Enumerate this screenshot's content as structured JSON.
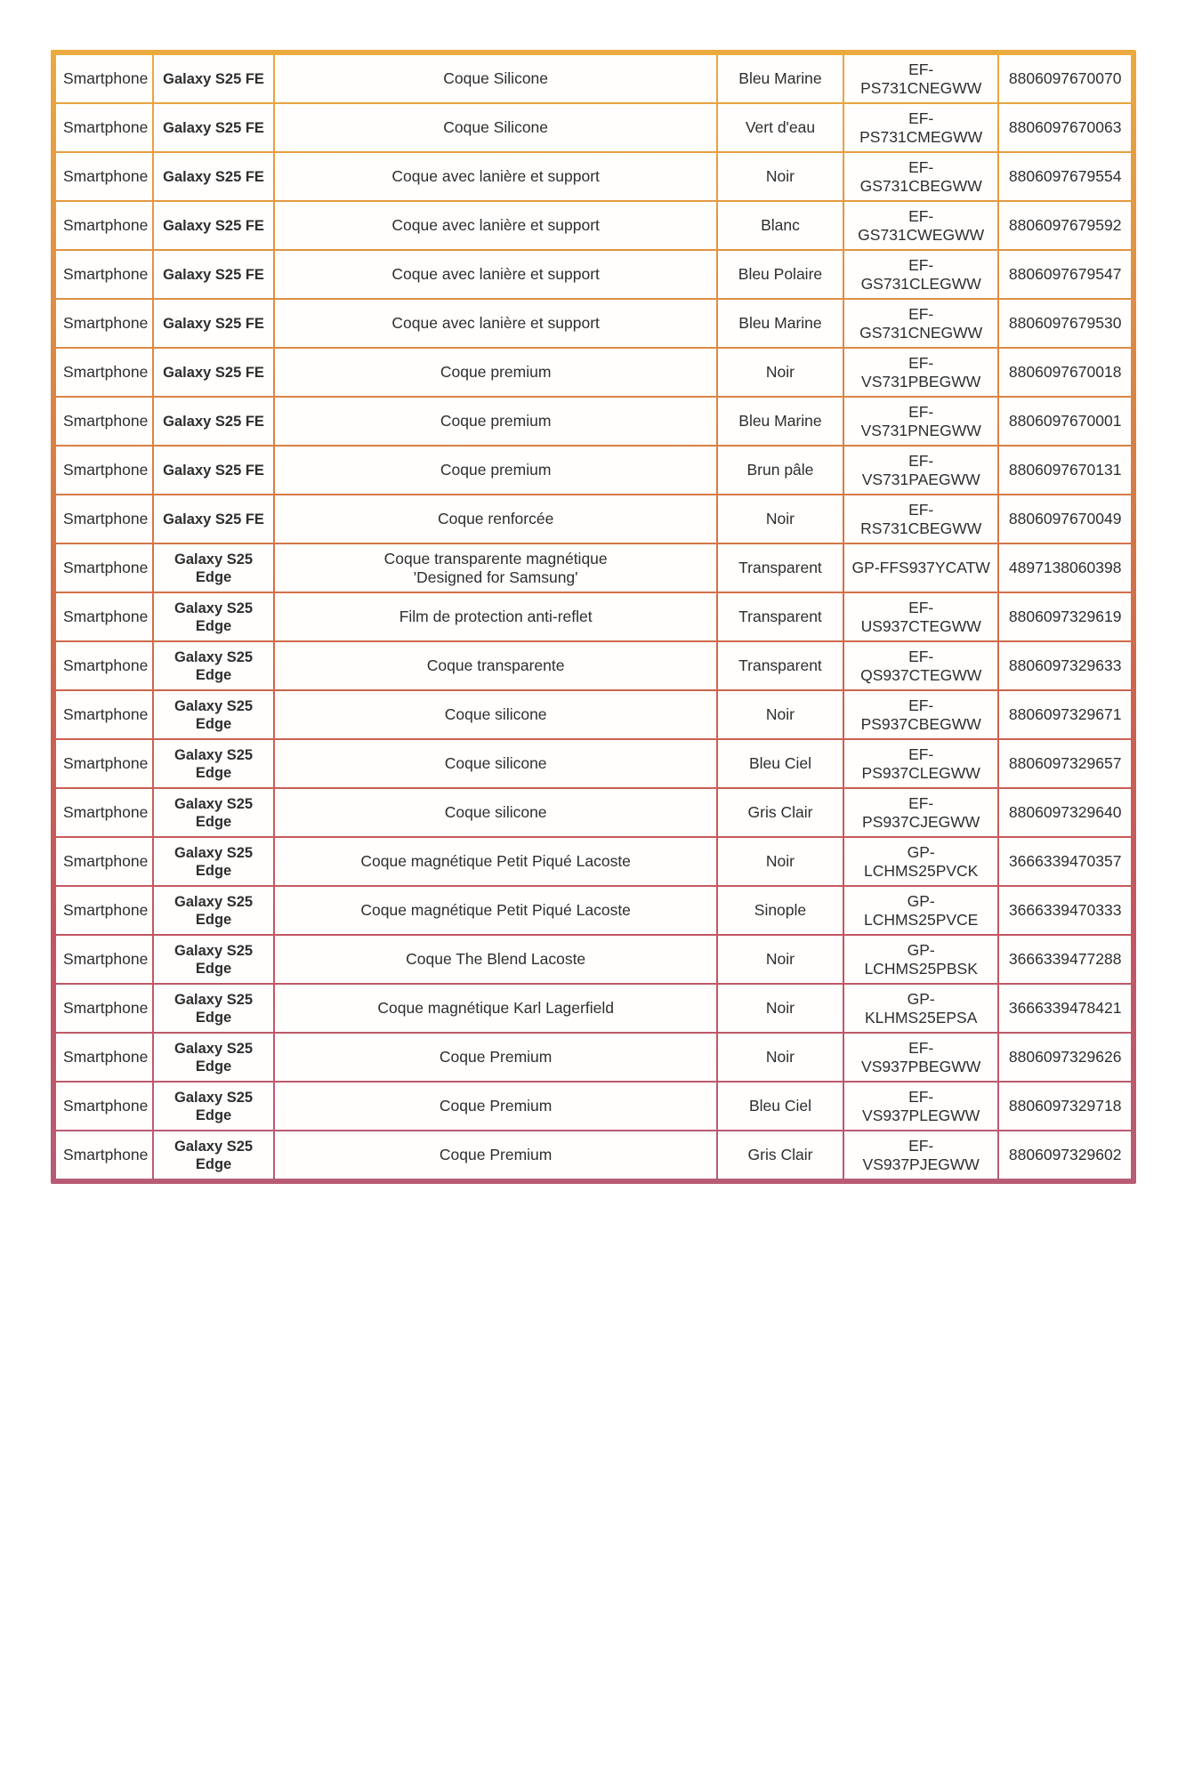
{
  "table": {
    "rows": [
      {
        "category": "Smartphone",
        "model": "Galaxy S25 FE",
        "product": "Coque Silicone",
        "color": "Bleu Marine",
        "reference": "EF-PS731CNEGWW",
        "ean": "8806097670070"
      },
      {
        "category": "Smartphone",
        "model": "Galaxy S25 FE",
        "product": "Coque Silicone",
        "color": "Vert d'eau",
        "reference": "EF-PS731CMEGWW",
        "ean": "8806097670063"
      },
      {
        "category": "Smartphone",
        "model": "Galaxy S25 FE",
        "product": "Coque avec lanière et support",
        "color": "Noir",
        "reference": "EF-GS731CBEGWW",
        "ean": "8806097679554"
      },
      {
        "category": "Smartphone",
        "model": "Galaxy S25 FE",
        "product": "Coque avec lanière et support",
        "color": "Blanc",
        "reference": "EF-GS731CWEGWW",
        "ean": "8806097679592"
      },
      {
        "category": "Smartphone",
        "model": "Galaxy S25 FE",
        "product": "Coque avec lanière et support",
        "color": "Bleu Polaire",
        "reference": "EF-GS731CLEGWW",
        "ean": "8806097679547"
      },
      {
        "category": "Smartphone",
        "model": "Galaxy S25 FE",
        "product": "Coque avec lanière et support",
        "color": "Bleu Marine",
        "reference": "EF-GS731CNEGWW",
        "ean": "8806097679530"
      },
      {
        "category": "Smartphone",
        "model": "Galaxy S25 FE",
        "product": "Coque premium",
        "color": "Noir",
        "reference": "EF-VS731PBEGWW",
        "ean": "8806097670018"
      },
      {
        "category": "Smartphone",
        "model": "Galaxy S25 FE",
        "product": "Coque premium",
        "color": "Bleu Marine",
        "reference": "EF-VS731PNEGWW",
        "ean": "8806097670001"
      },
      {
        "category": "Smartphone",
        "model": "Galaxy S25 FE",
        "product": "Coque premium",
        "color": "Brun pâle",
        "reference": "EF-VS731PAEGWW",
        "ean": "8806097670131"
      },
      {
        "category": "Smartphone",
        "model": "Galaxy S25 FE",
        "product": "Coque renforcée",
        "color": "Noir",
        "reference": "EF-RS731CBEGWW",
        "ean": "8806097670049"
      },
      {
        "category": "Smartphone",
        "model": "Galaxy S25\nEdge",
        "product": "Coque transparente magnétique\n'Designed for Samsung'",
        "color": "Transparent",
        "reference": "GP-FFS937YCATW",
        "ean": "4897138060398"
      },
      {
        "category": "Smartphone",
        "model": "Galaxy S25\nEdge",
        "product": "Film de protection anti-reflet",
        "color": "Transparent",
        "reference": "EF-US937CTEGWW",
        "ean": "8806097329619"
      },
      {
        "category": "Smartphone",
        "model": "Galaxy S25\nEdge",
        "product": "Coque transparente",
        "color": "Transparent",
        "reference": "EF-QS937CTEGWW",
        "ean": "8806097329633"
      },
      {
        "category": "Smartphone",
        "model": "Galaxy S25\nEdge",
        "product": "Coque silicone",
        "color": "Noir",
        "reference": "EF-PS937CBEGWW",
        "ean": "8806097329671"
      },
      {
        "category": "Smartphone",
        "model": "Galaxy S25\nEdge",
        "product": "Coque silicone",
        "color": "Bleu Ciel",
        "reference": "EF-PS937CLEGWW",
        "ean": "8806097329657"
      },
      {
        "category": "Smartphone",
        "model": "Galaxy S25\nEdge",
        "product": "Coque silicone",
        "color": "Gris Clair",
        "reference": "EF-PS937CJEGWW",
        "ean": "8806097329640"
      },
      {
        "category": "Smartphone",
        "model": "Galaxy S25\nEdge",
        "product": "Coque magnétique Petit Piqué Lacoste",
        "color": "Noir",
        "reference": "GP-LCHMS25PVCK",
        "ean": "3666339470357"
      },
      {
        "category": "Smartphone",
        "model": "Galaxy S25\nEdge",
        "product": "Coque magnétique Petit Piqué Lacoste",
        "color": "Sinople",
        "reference": "GP-LCHMS25PVCE",
        "ean": "3666339470333"
      },
      {
        "category": "Smartphone",
        "model": "Galaxy S25\nEdge",
        "product": "Coque The Blend Lacoste",
        "color": "Noir",
        "reference": "GP-LCHMS25PBSK",
        "ean": "3666339477288"
      },
      {
        "category": "Smartphone",
        "model": "Galaxy S25\nEdge",
        "product": "Coque magnétique Karl Lagerfield",
        "color": "Noir",
        "reference": "GP-KLHMS25EPSA",
        "ean": "3666339478421"
      },
      {
        "category": "Smartphone",
        "model": "Galaxy S25\nEdge",
        "product": "Coque Premium",
        "color": "Noir",
        "reference": "EF-VS937PBEGWW",
        "ean": "8806097329626"
      },
      {
        "category": "Smartphone",
        "model": "Galaxy S25\nEdge",
        "product": "Coque Premium",
        "color": "Bleu Ciel",
        "reference": "EF-VS937PLEGWW",
        "ean": "8806097329718"
      },
      {
        "category": "Smartphone",
        "model": "Galaxy S25\nEdge",
        "product": "Coque Premium",
        "color": "Gris Clair",
        "reference": "EF-VS937PJEGWW",
        "ean": "8806097329602"
      }
    ]
  },
  "style": {
    "border_gradient_top": "#EAAA3E",
    "border_gradient_middle": "#CC624E",
    "border_gradient_bottom": "#B75C74",
    "cell_background": "#FFFEFD",
    "text_color": "#2E2E2E"
  }
}
